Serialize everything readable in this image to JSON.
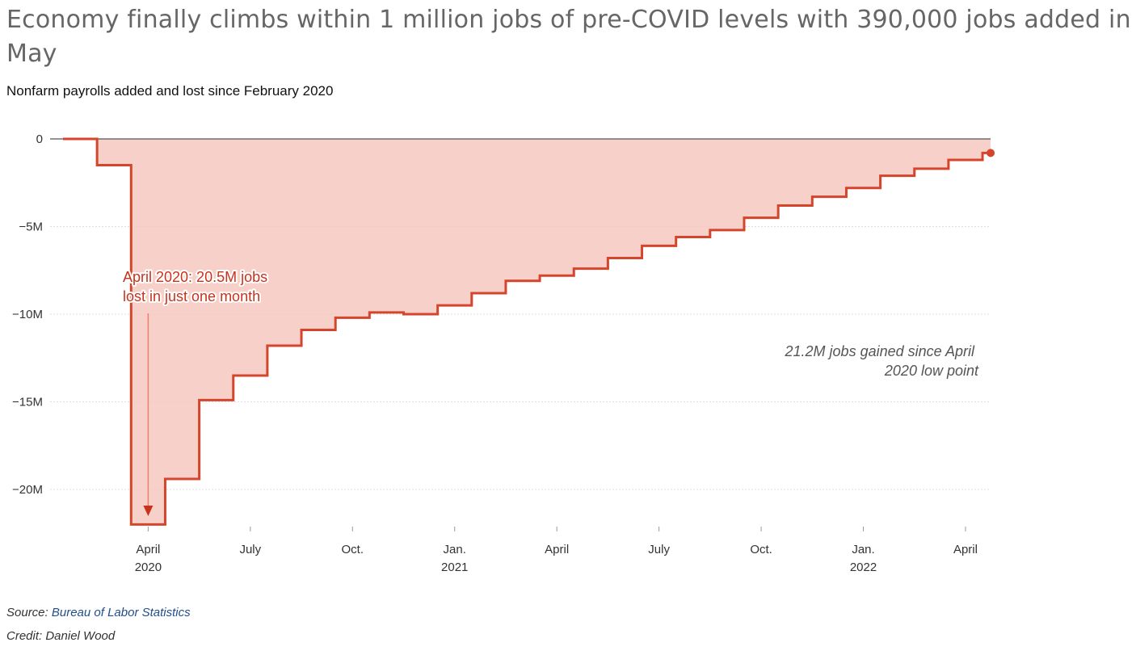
{
  "title": "Economy finally climbs within 1 million jobs of pre-COVID levels with 390,000 jobs added in May",
  "subtitle": "Nonfarm payrolls added and lost since February 2020",
  "footer": {
    "source_prefix": "Source: ",
    "source_name": "Bureau of Labor Statistics",
    "credit": "Credit: Daniel Wood"
  },
  "colors": {
    "line": "#d4452c",
    "area": "#f6c9c0",
    "zero_line": "#555555",
    "grid": "#dddddd",
    "annotation": "#c8321d"
  },
  "chart_data": {
    "type": "area",
    "step": true,
    "x": [
      "Feb 2020",
      "Mar 2020",
      "Apr 2020",
      "May 2020",
      "Jun 2020",
      "Jul 2020",
      "Aug 2020",
      "Sep 2020",
      "Oct 2020",
      "Nov 2020",
      "Dec 2020",
      "Jan 2021",
      "Feb 2021",
      "Mar 2021",
      "Apr 2021",
      "May 2021",
      "Jun 2021",
      "Jul 2021",
      "Aug 2021",
      "Sep 2021",
      "Oct 2021",
      "Nov 2021",
      "Dec 2021",
      "Jan 2022",
      "Feb 2022",
      "Mar 2022",
      "Apr 2022",
      "May 2022"
    ],
    "series": [
      {
        "values": [
          0,
          -1.5,
          -22.0,
          -19.4,
          -14.9,
          -13.5,
          -11.8,
          -10.9,
          -10.2,
          -9.9,
          -10.0,
          -9.5,
          -8.8,
          -8.1,
          -7.8,
          -7.4,
          -6.8,
          -6.1,
          -5.6,
          -5.2,
          -4.5,
          -3.8,
          -3.3,
          -2.8,
          -2.1,
          -1.7,
          -1.2,
          -0.8
        ]
      }
    ],
    "ylim": [
      -22.5,
      0.5
    ],
    "y_ticks": [
      {
        "value": 0,
        "label": "0"
      },
      {
        "value": -5,
        "label": "−5M"
      },
      {
        "value": -10,
        "label": "−10M"
      },
      {
        "value": -15,
        "label": "−15M"
      },
      {
        "value": -20,
        "label": "−20M"
      }
    ],
    "x_ticks": [
      {
        "month": "Apr 2020",
        "label": "April",
        "year": "2020"
      },
      {
        "month": "Jul 2020",
        "label": "July",
        "year": ""
      },
      {
        "month": "Oct 2020",
        "label": "Oct.",
        "year": ""
      },
      {
        "month": "Jan 2021",
        "label": "Jan.",
        "year": "2021"
      },
      {
        "month": "Apr 2021",
        "label": "April",
        "year": ""
      },
      {
        "month": "Jul 2021",
        "label": "July",
        "year": ""
      },
      {
        "month": "Oct 2021",
        "label": "Oct.",
        "year": ""
      },
      {
        "month": "Jan 2022",
        "label": "Jan.",
        "year": "2022"
      },
      {
        "month": "Apr 2022",
        "label": "April",
        "year": ""
      }
    ],
    "grid": true,
    "annotations": [
      {
        "lines": [
          "April 2020: 20.5M jobs",
          "lost in just one month"
        ]
      },
      {
        "lines": [
          "21.2M jobs gained since April",
          "2020 low point"
        ]
      }
    ]
  }
}
